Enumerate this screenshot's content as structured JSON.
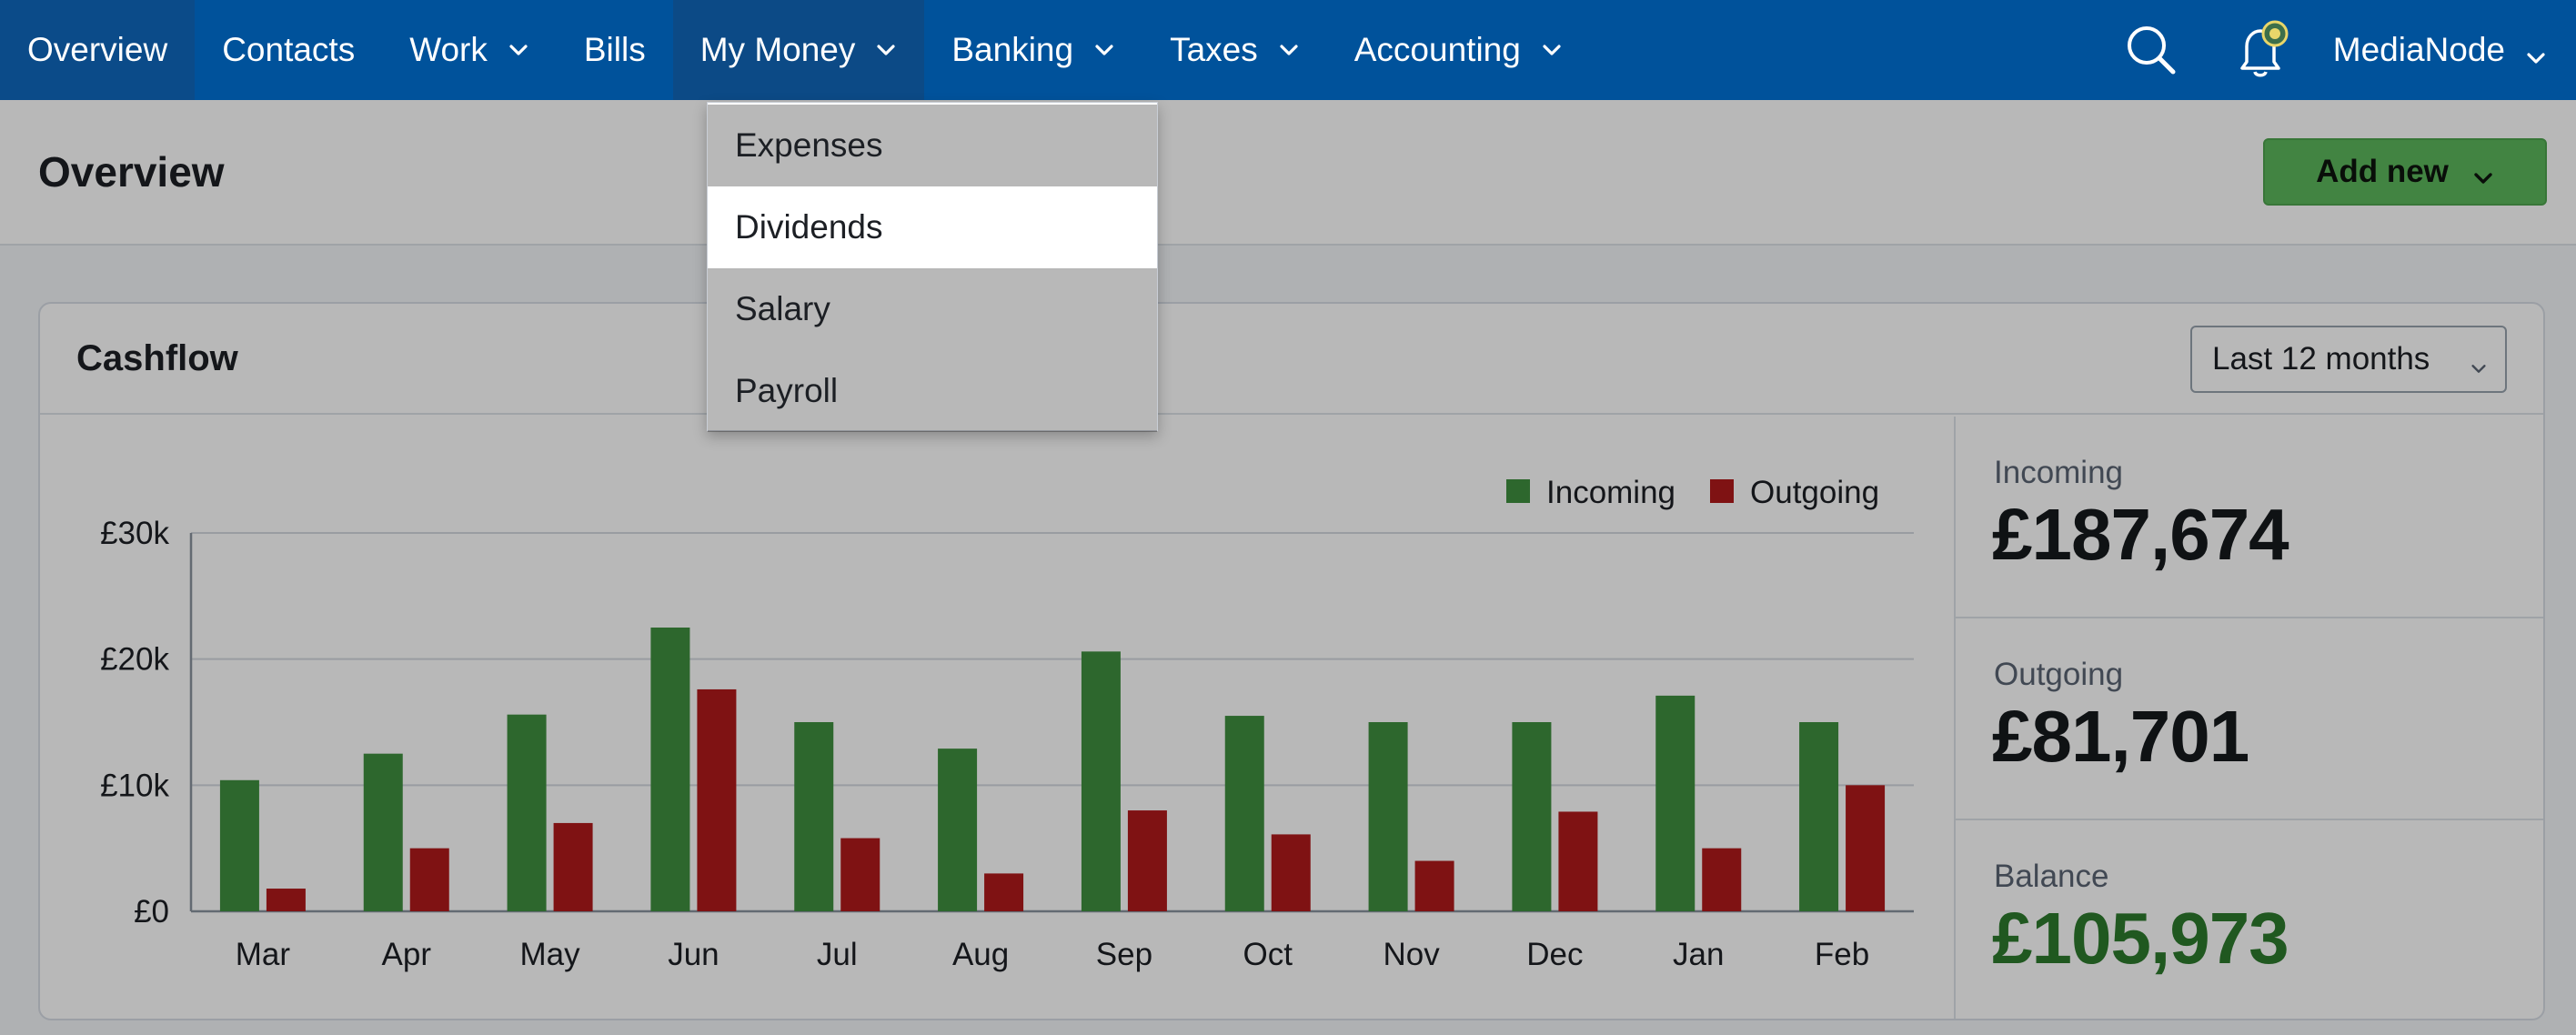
{
  "nav": {
    "items": [
      {
        "label": "Overview",
        "has_menu": false
      },
      {
        "label": "Contacts",
        "has_menu": false
      },
      {
        "label": "Work",
        "has_menu": true
      },
      {
        "label": "Bills",
        "has_menu": false
      },
      {
        "label": "My Money",
        "has_menu": true
      },
      {
        "label": "Banking",
        "has_menu": true
      },
      {
        "label": "Taxes",
        "has_menu": true
      },
      {
        "label": "Accounting",
        "has_menu": true
      }
    ],
    "active": "Overview",
    "open_menu": "My Money",
    "icons": [
      "search-icon",
      "bell-icon"
    ],
    "user_label": "MediaNode"
  },
  "dropdown": {
    "items": [
      "Expenses",
      "Dividends",
      "Salary",
      "Payroll"
    ],
    "highlighted": "Dividends"
  },
  "header": {
    "title": "Overview",
    "add_new_label": "Add new"
  },
  "cashflow": {
    "title": "Cashflow",
    "period": "Last 12 months",
    "stats": [
      {
        "label": "Incoming",
        "value": "£187,674"
      },
      {
        "label": "Outgoing",
        "value": "£81,701"
      },
      {
        "label": "Balance",
        "value": "£105,973"
      }
    ]
  },
  "colors": {
    "nav": "#00529b",
    "incoming": "#3f8f3f",
    "outgoing": "#b1191b",
    "add_new": "#5cb85c",
    "balance": "#2d7a2d"
  },
  "chart_data": {
    "type": "bar",
    "categories": [
      "Mar",
      "Apr",
      "May",
      "Jun",
      "Jul",
      "Aug",
      "Sep",
      "Oct",
      "Nov",
      "Dec",
      "Jan",
      "Feb"
    ],
    "series": [
      {
        "name": "Incoming",
        "color": "#3f8f3f",
        "values": [
          10400,
          12500,
          15600,
          22500,
          15000,
          12900,
          20600,
          15500,
          15000,
          15000,
          17100,
          15000
        ]
      },
      {
        "name": "Outgoing",
        "color": "#b1191b",
        "values": [
          1800,
          5000,
          7000,
          17600,
          5800,
          3000,
          8000,
          6100,
          4000,
          7900,
          5000,
          10000
        ]
      }
    ],
    "yticks": [
      "£0",
      "£10k",
      "£20k",
      "£30k"
    ],
    "ylim": [
      0,
      30000
    ],
    "legend": "top-right",
    "grid": true
  }
}
